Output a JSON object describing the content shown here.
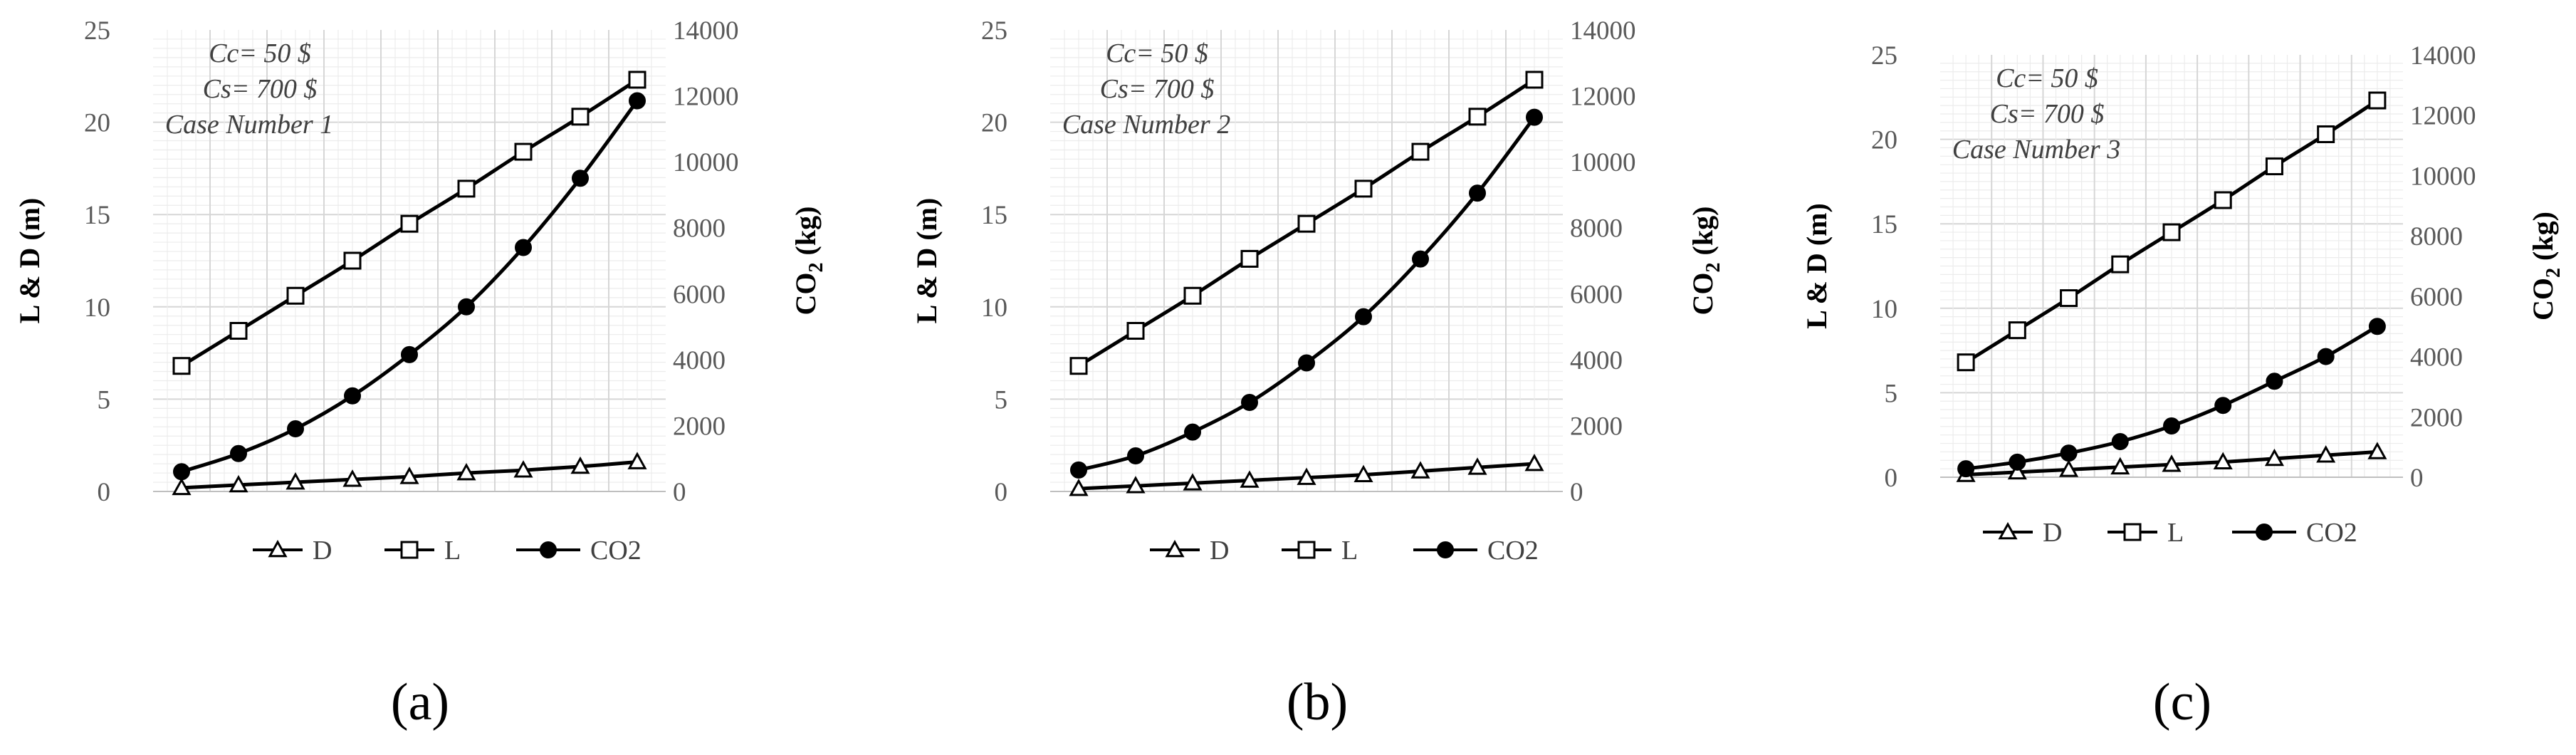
{
  "chart_data": [
    {
      "type": "line",
      "panel_label": "(a)",
      "annotations": [
        "Cc= 50 $",
        "Cs= 700 $",
        "Case Number 1"
      ],
      "ylabel_left": "L & D (m)",
      "ylabel_right": "CO2 (kg)",
      "ylim_left": [
        0,
        25
      ],
      "yticks_left": [
        0,
        5,
        10,
        15,
        20,
        25
      ],
      "ylim_right": [
        0,
        14000
      ],
      "yticks_right": [
        0,
        2000,
        4000,
        6000,
        8000,
        10000,
        12000,
        14000
      ],
      "grid": true,
      "legend_position": "bottom",
      "series": [
        {
          "name": "D",
          "axis": "left",
          "marker": "triangle",
          "values": [
            0.2,
            0.35,
            0.5,
            0.65,
            0.8,
            1.0,
            1.15,
            1.35,
            1.6
          ]
        },
        {
          "name": "L",
          "axis": "left",
          "marker": "square",
          "values": [
            6.8,
            8.7,
            10.6,
            12.5,
            14.5,
            16.4,
            18.4,
            20.3,
            22.3
          ]
        },
        {
          "name": "CO2",
          "axis": "right",
          "marker": "circle",
          "values": [
            600,
            1150,
            1900,
            2900,
            4150,
            5600,
            7400,
            9500,
            11850
          ]
        }
      ]
    },
    {
      "type": "line",
      "panel_label": "(b)",
      "annotations": [
        "Cc= 50 $",
        "Cs= 700 $",
        "Case Number 2"
      ],
      "ylabel_left": "L & D (m)",
      "ylabel_right": "CO2 (kg)",
      "ylim_left": [
        0,
        25
      ],
      "yticks_left": [
        0,
        5,
        10,
        15,
        20,
        25
      ],
      "ylim_right": [
        0,
        14000
      ],
      "yticks_right": [
        0,
        2000,
        4000,
        6000,
        8000,
        10000,
        12000,
        14000
      ],
      "grid": true,
      "legend_position": "bottom",
      "series": [
        {
          "name": "D",
          "axis": "left",
          "marker": "triangle",
          "values": [
            0.15,
            0.3,
            0.45,
            0.6,
            0.75,
            0.9,
            1.1,
            1.3,
            1.5
          ]
        },
        {
          "name": "L",
          "axis": "left",
          "marker": "square",
          "values": [
            6.8,
            8.7,
            10.6,
            12.6,
            14.5,
            16.4,
            18.4,
            20.3,
            22.3
          ]
        },
        {
          "name": "CO2",
          "axis": "right",
          "marker": "circle",
          "values": [
            650,
            1080,
            1800,
            2700,
            3900,
            5300,
            7050,
            9050,
            11350
          ]
        }
      ]
    },
    {
      "type": "line",
      "panel_label": "(c)",
      "annotations": [
        "Cc= 50 $",
        "Cs= 700 $",
        "Case Number 3"
      ],
      "ylabel_left": "L & D (m)",
      "ylabel_right": "CO2 (kg)",
      "ylim_left": [
        0,
        25
      ],
      "yticks_left": [
        0,
        5,
        10,
        15,
        20,
        25
      ],
      "ylim_right": [
        0,
        14000
      ],
      "yticks_right": [
        0,
        2000,
        4000,
        6000,
        8000,
        10000,
        12000,
        14000
      ],
      "grid": true,
      "legend_position": "bottom",
      "series": [
        {
          "name": "D",
          "axis": "left",
          "marker": "triangle",
          "values": [
            0.15,
            0.3,
            0.45,
            0.6,
            0.75,
            0.9,
            1.1,
            1.3,
            1.5
          ]
        },
        {
          "name": "L",
          "axis": "left",
          "marker": "square",
          "values": [
            6.8,
            8.7,
            10.6,
            12.6,
            14.5,
            16.4,
            18.4,
            20.3,
            22.3
          ]
        },
        {
          "name": "CO2",
          "axis": "right",
          "marker": "circle",
          "values": [
            280,
            500,
            800,
            1180,
            1700,
            2380,
            3180,
            4000,
            5000
          ]
        }
      ]
    }
  ]
}
